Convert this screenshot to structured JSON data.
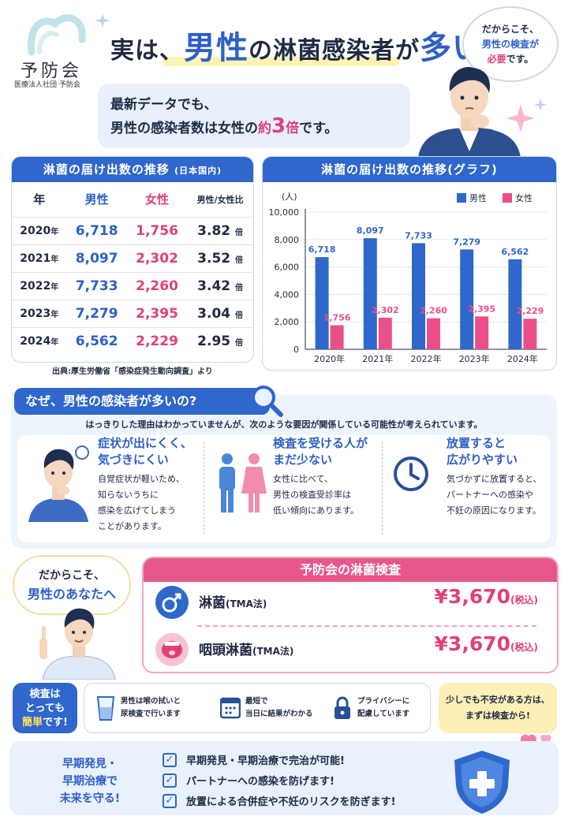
{
  "brand": {
    "name": "予防会",
    "sub": "医療法人社団 予防会"
  },
  "headline": {
    "pre": "実は、",
    "male": "男性",
    "mid": "の淋菌感染者が",
    "big": "多い"
  },
  "top_bubble": {
    "l1": "だからこそ、",
    "l2": "男性の検査が",
    "l3": "必要",
    "l3b": "です。"
  },
  "note": {
    "l1": "最新データでも、",
    "l2a": "男性の感染者数は女性の",
    "l2b": "約",
    "l2c": "3",
    "l2d": "倍",
    "l2e": "です。"
  },
  "table": {
    "title": "淋菌の届け出数の推移",
    "title_sub": "(日本国内)",
    "headers": [
      "年",
      "男性",
      "女性",
      "男性/女性比"
    ],
    "year_unit": "年",
    "ratio_unit": "倍",
    "rows": [
      {
        "year": "2020",
        "male": "6,718",
        "female": "1,756",
        "ratio": "3.82"
      },
      {
        "year": "2021",
        "male": "8,097",
        "female": "2,302",
        "ratio": "3.52"
      },
      {
        "year": "2022",
        "male": "7,733",
        "female": "2,260",
        "ratio": "3.42"
      },
      {
        "year": "2023",
        "male": "7,279",
        "female": "2,395",
        "ratio": "3.04"
      },
      {
        "year": "2024",
        "male": "6,562",
        "female": "2,229",
        "ratio": "2.95"
      }
    ],
    "source": "出典:厚生労働省「感染症発生動向調査」より"
  },
  "chart_data": {
    "type": "bar",
    "title": "淋菌の届け出数の推移(グラフ)",
    "ylabel": "(人)",
    "categories": [
      "2020年",
      "2021年",
      "2022年",
      "2023年",
      "2024年"
    ],
    "series": [
      {
        "name": "男性",
        "color": "#2f67cc",
        "values": [
          6718,
          8097,
          7733,
          7279,
          6562
        ],
        "labels": [
          "6,718",
          "8,097",
          "7,733",
          "7,279",
          "6,562"
        ]
      },
      {
        "name": "女性",
        "color": "#ea4f8a",
        "values": [
          1756,
          2302,
          2260,
          2395,
          2229
        ],
        "labels": [
          "1,756",
          "2,302",
          "2,260",
          "2,395",
          "2,229"
        ]
      }
    ],
    "ylim": [
      0,
      10000
    ],
    "yticks": [
      "0",
      "2,000",
      "4,000",
      "6,000",
      "8,000",
      "10,000"
    ],
    "legend": "top-right",
    "grid": true
  },
  "reasons": {
    "title": "なぜ、男性の感染者が多いの?",
    "desc": "はっきりした理由はわかっていませんが、次のような要因が関係している可能性が考えられています。",
    "items": [
      {
        "t1": "症状が出にくく、",
        "t2": "気づきにくい",
        "d": [
          "自覚症状が軽いため、",
          "知らないうちに",
          "感染を広げてしまう",
          "ことがあります。"
        ]
      },
      {
        "t1": "検査を受ける人が",
        "t2": "まだ少ない",
        "d": [
          "女性に比べて、",
          "男性の検査受診率は",
          "低い傾向にあります。"
        ]
      },
      {
        "t1": "放置すると",
        "t2": "広がりやすい",
        "d": [
          "気づかずに放置すると、",
          "パートナーへの感染や",
          "不妊の原因になります。"
        ]
      }
    ]
  },
  "left_bubble": {
    "l1": "だからこそ、",
    "l2": "男性のあなたへ"
  },
  "tests": {
    "title": "予防会の淋菌検査",
    "items": [
      {
        "name": "淋菌",
        "method": "(TMA法)",
        "price": "¥3,670",
        "tax": "(税込)"
      },
      {
        "name": "咽頭淋菌",
        "method": "(TMA法)",
        "price": "¥3,670",
        "tax": "(税込)"
      }
    ]
  },
  "easy": {
    "badge": [
      "検査は",
      "とっても",
      "簡単",
      "です!"
    ],
    "items": [
      {
        "l1": "男性は喉の拭いと",
        "l2": "尿検査で行います"
      },
      {
        "l1": "最短で",
        "l2": "当日に結果がわかる"
      },
      {
        "l1": "プライバシーに",
        "l2": "配慮しています"
      }
    ],
    "note": [
      "少しでも不安がある方は、",
      "まずは検査から!"
    ]
  },
  "future": [
    "早期発見・",
    "早期治療で",
    "未来を守る!"
  ],
  "checks": [
    "早期発見・早期治療で完治が可能!",
    "パートナーへの感染を防げます!",
    "放置による合併症や不妊のリスクを防ぎます!"
  ],
  "colors": {
    "blue": "#2f67cc",
    "pink": "#e0407a",
    "yellow": "#fdf0b6"
  }
}
